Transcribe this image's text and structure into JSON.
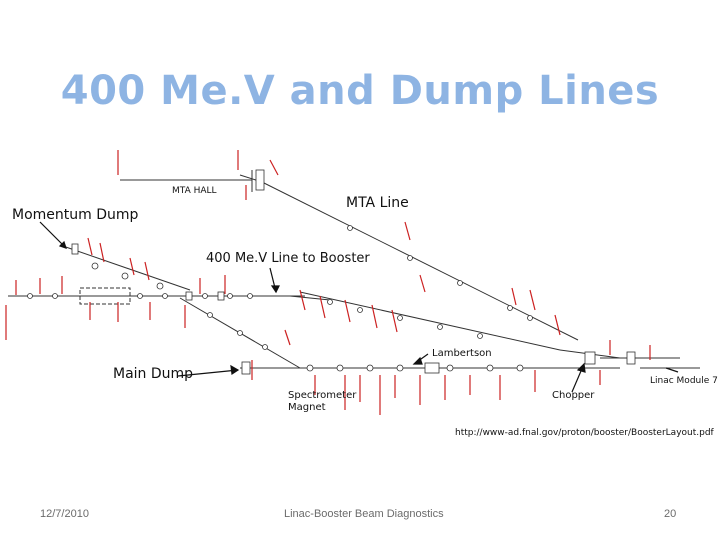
{
  "slide": {
    "title": "400 Me.V and Dump Lines",
    "labels": {
      "mta_line": "MTA Line",
      "momentum_dump": "Momentum Dump",
      "line_to_booster": "400 Me.V Line to Booster",
      "main_dump": "Main Dump",
      "lambertson": "Lambertson",
      "spectrometer_line1": "Spectrometer",
      "spectrometer_line2": "Magnet",
      "chopper": "Chopper",
      "linac_module": "Linac Module 7",
      "mta_hall": "MTA HALL",
      "url": "http://www-ad.fnal.gov/proton/booster/BoosterLayout.pdf"
    }
  },
  "footer": {
    "date": "12/7/2010",
    "center": "Linac-Booster Beam Diagnostics",
    "page": "20"
  },
  "colors": {
    "title": "#8eb4e3",
    "tiny_labels": "#cc2222",
    "lines": "#333333"
  }
}
